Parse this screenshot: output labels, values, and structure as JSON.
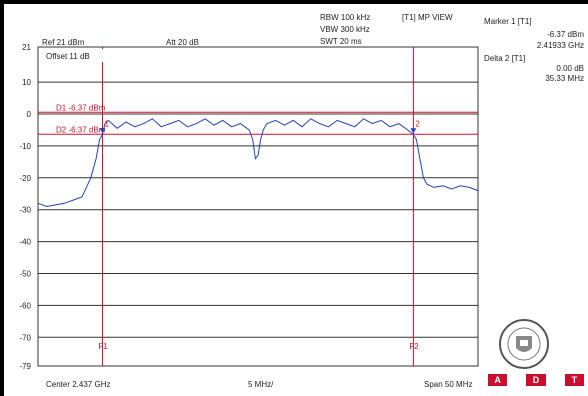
{
  "header": {
    "ref": "Ref 21 dBm",
    "att": "Att  20 dB",
    "rbw": "RBW 100 kHz",
    "vbw": "VBW 300 kHz",
    "swt": "SWT 20 ms",
    "trace_mode": "[T1] MP VIEW",
    "offset": "Offset 11 dB"
  },
  "markers": {
    "marker1_title": "Marker 1 [T1]",
    "marker1_level": "-6.37 dBm",
    "marker1_freq": "2.41933 GHz",
    "delta2_title": "Delta 2 [T1]",
    "delta2_level": "0.00 dB",
    "delta2_freq": "35.33 MHz"
  },
  "footer": {
    "center": "Center 2.437 GHz",
    "div": "5 MHz/",
    "span": "Span 50 MHz"
  },
  "logos": {
    "bureau_veritas": "BUREAU VERITAS 1828",
    "adt": [
      "A",
      "D",
      "T"
    ]
  },
  "chart_data": {
    "type": "line",
    "ylabel": "dBm",
    "ylim": [
      -79,
      21
    ],
    "xlim": [
      2412,
      2462
    ],
    "y_ticks": [
      21,
      10,
      0,
      -10,
      -20,
      -30,
      -40,
      -50,
      -60,
      -70,
      -79
    ],
    "y_tick_labels": [
      "21",
      "10",
      "0",
      "-10",
      "-20",
      "-30",
      "-40",
      "-50",
      "-60",
      "-70",
      "-79"
    ],
    "grid": true,
    "display_lines": [
      {
        "label": "D1 -6.37 dBm",
        "value": -6.37,
        "color": "#d0102a"
      },
      {
        "label": "D2 -6.37 dBm",
        "value": -6.37,
        "color": "#d0102a"
      }
    ],
    "vertical_lines": [
      {
        "label": "F1",
        "x": 2419.33,
        "color": "#d0102a"
      },
      {
        "label": "F2",
        "x": 2454.66,
        "color": "#d0102a"
      }
    ],
    "marker_points": [
      {
        "label": "1",
        "x": 2419.33,
        "y": -6.37
      },
      {
        "label": "2",
        "x": 2454.66,
        "y": -6.37
      }
    ],
    "series": [
      {
        "color": "#2340b8",
        "x": [
          2412,
          2413,
          2414,
          2415,
          2416,
          2417,
          2418,
          2418.6,
          2419.0,
          2419.33,
          2419.6,
          2420,
          2421,
          2422,
          2423,
          2424,
          2425,
          2426,
          2427,
          2428,
          2429,
          2430,
          2431,
          2432,
          2433,
          2434,
          2435,
          2436,
          2436.4,
          2436.7,
          2437.0,
          2437.3,
          2437.6,
          2438,
          2439,
          2440,
          2441,
          2442,
          2443,
          2444,
          2445,
          2446,
          2447,
          2448,
          2449,
          2450,
          2451,
          2452,
          2453,
          2454,
          2454.66,
          2455.0,
          2455.4,
          2455.8,
          2456.2,
          2457,
          2458,
          2459,
          2460,
          2461,
          2462
        ],
        "y": [
          -28,
          -29,
          -28.5,
          -28,
          -27,
          -26,
          -20,
          -14,
          -8,
          -6.37,
          -3,
          -2,
          -4.5,
          -2.5,
          -4,
          -3,
          -1.5,
          -4,
          -3,
          -2,
          -4,
          -3,
          -1.5,
          -3.5,
          -2,
          -4,
          -3,
          -5,
          -8,
          -14,
          -13,
          -8,
          -5,
          -3,
          -2,
          -3.5,
          -2,
          -4,
          -1.5,
          -3,
          -4,
          -2,
          -3,
          -4,
          -1.5,
          -3,
          -2,
          -4,
          -3,
          -5,
          -6.37,
          -8,
          -14,
          -20,
          -22,
          -23,
          -22.5,
          -23.5,
          -22.5,
          -23,
          -24
        ]
      }
    ]
  }
}
